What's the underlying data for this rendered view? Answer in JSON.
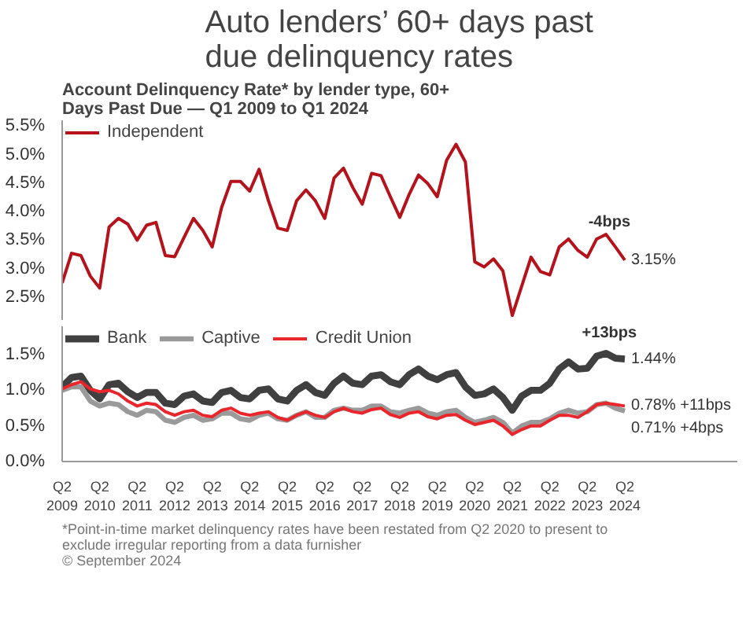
{
  "chart_data": [
    {
      "type": "line",
      "title": "Auto lenders’ 60+ days past due delinquency rates",
      "subtitle": "Account Delinquency Rate* by lender type, 60+ Days Past Due — Q1 2009 to Q1 2024",
      "categories": [
        "Q2\n2009",
        null,
        null,
        null,
        "Q2\n2010",
        null,
        null,
        null,
        "Q2\n2011",
        null,
        null,
        null,
        "Q2\n2012",
        null,
        null,
        null,
        "Q2\n2013",
        null,
        null,
        null,
        "Q2\n2014",
        null,
        null,
        null,
        "Q2\n2015",
        null,
        null,
        null,
        "Q2\n2016",
        null,
        null,
        null,
        "Q2\n2017",
        null,
        null,
        null,
        "Q2\n2018",
        null,
        null,
        null,
        "Q2\n2019",
        null,
        null,
        null,
        "Q2\n2020",
        null,
        null,
        null,
        "Q2\n2021",
        null,
        null,
        null,
        "Q2\n2022",
        null,
        null,
        null,
        "Q2\n2023",
        null,
        null,
        null,
        "Q2\n2024"
      ],
      "series": [
        {
          "name": "Independent",
          "color": "#b5121b",
          "values": [
            2.75,
            3.27,
            3.23,
            2.87,
            2.66,
            3.73,
            3.88,
            3.78,
            3.5,
            3.76,
            3.81,
            3.23,
            3.21,
            3.55,
            3.88,
            3.67,
            3.38,
            4.07,
            4.53,
            4.53,
            4.36,
            4.74,
            4.19,
            3.71,
            3.67,
            4.19,
            4.38,
            4.19,
            3.88,
            4.59,
            4.76,
            4.42,
            4.13,
            4.67,
            4.63,
            4.26,
            3.9,
            4.3,
            4.64,
            4.49,
            4.26,
            4.9,
            5.18,
            4.87,
            3.12,
            3.03,
            3.17,
            2.96,
            2.18,
            2.69,
            3.2,
            2.95,
            2.89,
            3.38,
            3.52,
            3.32,
            3.2,
            3.52,
            3.6,
            3.38,
            3.15
          ]
        }
      ],
      "ylim": [
        2.1,
        5.6
      ],
      "yticks": [
        {
          "value": 2.5,
          "label": "2.5%"
        },
        {
          "value": 3.0,
          "label": "3.0%"
        },
        {
          "value": 3.5,
          "label": "3.5%"
        },
        {
          "value": 4.0,
          "label": "4.0%"
        },
        {
          "value": 4.5,
          "label": "4.5%"
        },
        {
          "value": 5.0,
          "label": "5.0%"
        },
        {
          "value": 5.5,
          "label": "5.5%"
        }
      ],
      "tick_labels": "y",
      "grid": false,
      "legend": "top left",
      "marker": "none",
      "line_style": "solid",
      "annotations": [
        {
          "text": "-4bps",
          "x": "Q2\n2023",
          "y": 3.2
        },
        {
          "text": "3.15%",
          "x": "Q2\n2024",
          "y": 3.15
        }
      ]
    },
    {
      "type": "line",
      "categories": [
        "Q2\n2009",
        null,
        null,
        null,
        "Q2\n2010",
        null,
        null,
        null,
        "Q2\n2011",
        null,
        null,
        null,
        "Q2\n2012",
        null,
        null,
        null,
        "Q2\n2013",
        null,
        null,
        null,
        "Q2\n2014",
        null,
        null,
        null,
        "Q2\n2015",
        null,
        null,
        null,
        "Q2\n2016",
        null,
        null,
        null,
        "Q2\n2017",
        null,
        null,
        null,
        "Q2\n2018",
        null,
        null,
        null,
        "Q2\n2019",
        null,
        null,
        null,
        "Q2\n2020",
        null,
        null,
        null,
        "Q2\n2021",
        null,
        null,
        null,
        "Q2\n2022",
        null,
        null,
        null,
        "Q2\n2023",
        null,
        null,
        null,
        "Q2\n2024"
      ],
      "series": [
        {
          "name": "Bank",
          "color": "#404040",
          "values": [
            1.05,
            1.18,
            1.2,
            1.0,
            0.88,
            1.08,
            1.1,
            0.98,
            0.9,
            0.97,
            0.97,
            0.82,
            0.8,
            0.92,
            0.95,
            0.85,
            0.83,
            0.97,
            1.0,
            0.9,
            0.88,
            1.0,
            1.02,
            0.88,
            0.85,
            1.0,
            1.08,
            0.97,
            0.93,
            1.1,
            1.2,
            1.1,
            1.08,
            1.2,
            1.22,
            1.12,
            1.08,
            1.22,
            1.3,
            1.2,
            1.15,
            1.22,
            1.25,
            1.05,
            0.93,
            0.95,
            1.02,
            0.9,
            0.72,
            0.92,
            1.0,
            1.0,
            1.1,
            1.3,
            1.4,
            1.3,
            1.31,
            1.48,
            1.52,
            1.45,
            1.44
          ]
        },
        {
          "name": "Captive",
          "color": "#9a9a9a",
          "values": [
            1.0,
            1.05,
            1.05,
            0.85,
            0.78,
            0.82,
            0.8,
            0.7,
            0.65,
            0.72,
            0.7,
            0.58,
            0.55,
            0.62,
            0.65,
            0.58,
            0.6,
            0.68,
            0.68,
            0.6,
            0.58,
            0.65,
            0.68,
            0.6,
            0.58,
            0.65,
            0.7,
            0.62,
            0.62,
            0.72,
            0.75,
            0.72,
            0.72,
            0.78,
            0.78,
            0.7,
            0.68,
            0.72,
            0.75,
            0.68,
            0.65,
            0.7,
            0.72,
            0.62,
            0.55,
            0.58,
            0.62,
            0.55,
            0.4,
            0.5,
            0.55,
            0.55,
            0.6,
            0.68,
            0.72,
            0.68,
            0.7,
            0.8,
            0.82,
            0.75,
            0.71
          ]
        },
        {
          "name": "Credit Union",
          "color": "#e8262c",
          "values": [
            1.02,
            1.08,
            1.12,
            1.02,
            0.98,
            1.0,
            0.95,
            0.85,
            0.78,
            0.82,
            0.8,
            0.7,
            0.65,
            0.7,
            0.72,
            0.65,
            0.63,
            0.72,
            0.75,
            0.68,
            0.65,
            0.68,
            0.7,
            0.62,
            0.58,
            0.65,
            0.7,
            0.65,
            0.62,
            0.7,
            0.75,
            0.7,
            0.68,
            0.73,
            0.75,
            0.66,
            0.62,
            0.68,
            0.7,
            0.63,
            0.6,
            0.65,
            0.66,
            0.58,
            0.52,
            0.55,
            0.58,
            0.5,
            0.38,
            0.45,
            0.5,
            0.5,
            0.58,
            0.65,
            0.65,
            0.62,
            0.7,
            0.8,
            0.82,
            0.8,
            0.78
          ]
        }
      ],
      "ylim": [
        0,
        1.9
      ],
      "yticks": [
        {
          "value": 0,
          "label": "0.0%"
        },
        {
          "value": 0.5,
          "label": "0.5%"
        },
        {
          "value": 1.0,
          "label": "1.0%"
        },
        {
          "value": 1.5,
          "label": "1.5%"
        }
      ],
      "grid": false,
      "legend": "top left",
      "marker": "none",
      "line_style": "solid",
      "annotations": [
        {
          "text": "+13bps",
          "x": "Q2\n2023",
          "y": 1.31
        },
        {
          "text": "1.44%",
          "x": "Q2\n2024",
          "y": 1.44
        },
        {
          "text": "0.78% +11bps",
          "x": "Q2\n2024",
          "y": 0.78
        },
        {
          "text": "0.71% +4bps",
          "x": "Q2\n2024",
          "y": 0.71
        },
        "*Point-in-time market delinquency rates have been restated from Q2 2020 to present to exclude irregular reporting from a data furnisher",
        "© September 2024"
      ]
    }
  ]
}
